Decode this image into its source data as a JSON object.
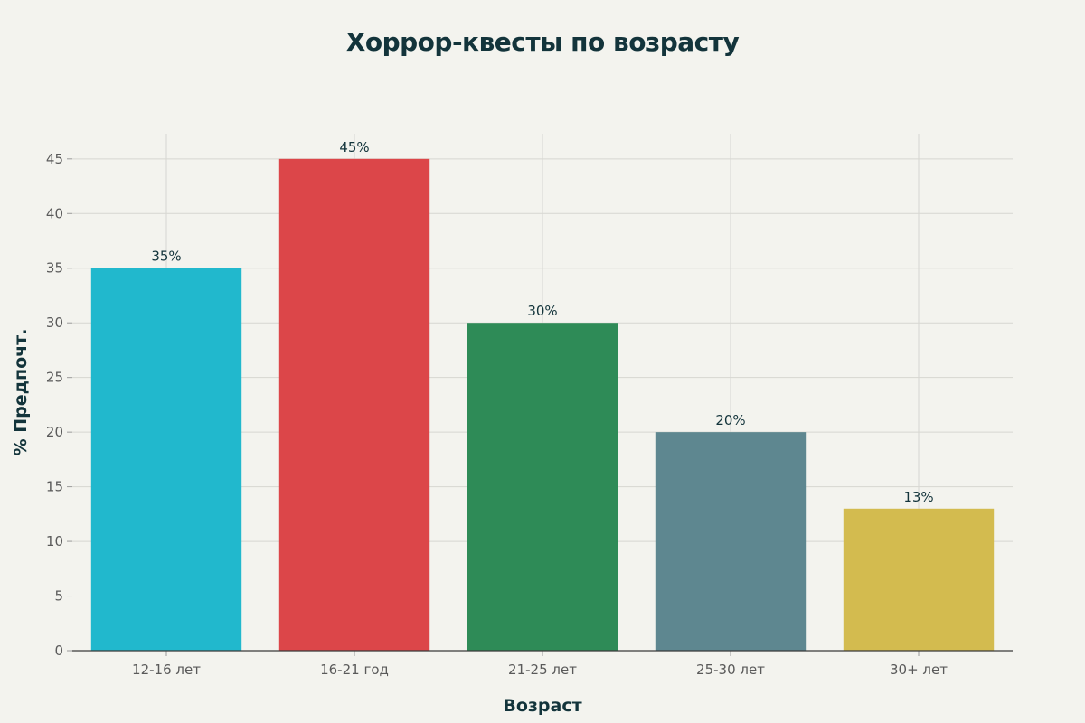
{
  "chart_data": {
    "type": "bar",
    "title": "Хоррор-квесты по возрасту",
    "xlabel": "Возраст",
    "ylabel": "% Предпочт.",
    "categories": [
      "12-16 лет",
      "16-21 год",
      "21-25 лет",
      "25-30 лет",
      "30+ лет"
    ],
    "values": [
      35,
      45,
      30,
      20,
      13
    ],
    "data_labels": [
      "35%",
      "45%",
      "30%",
      "20%",
      "13%"
    ],
    "colors": [
      "#21b8cd",
      "#dc4649",
      "#2e8b57",
      "#5e8790",
      "#d3bb4f"
    ],
    "ylim": [
      0,
      47.3
    ],
    "yticks": [
      0,
      5,
      10,
      15,
      20,
      25,
      30,
      35,
      40,
      45
    ],
    "grid": true,
    "legend": "none"
  }
}
